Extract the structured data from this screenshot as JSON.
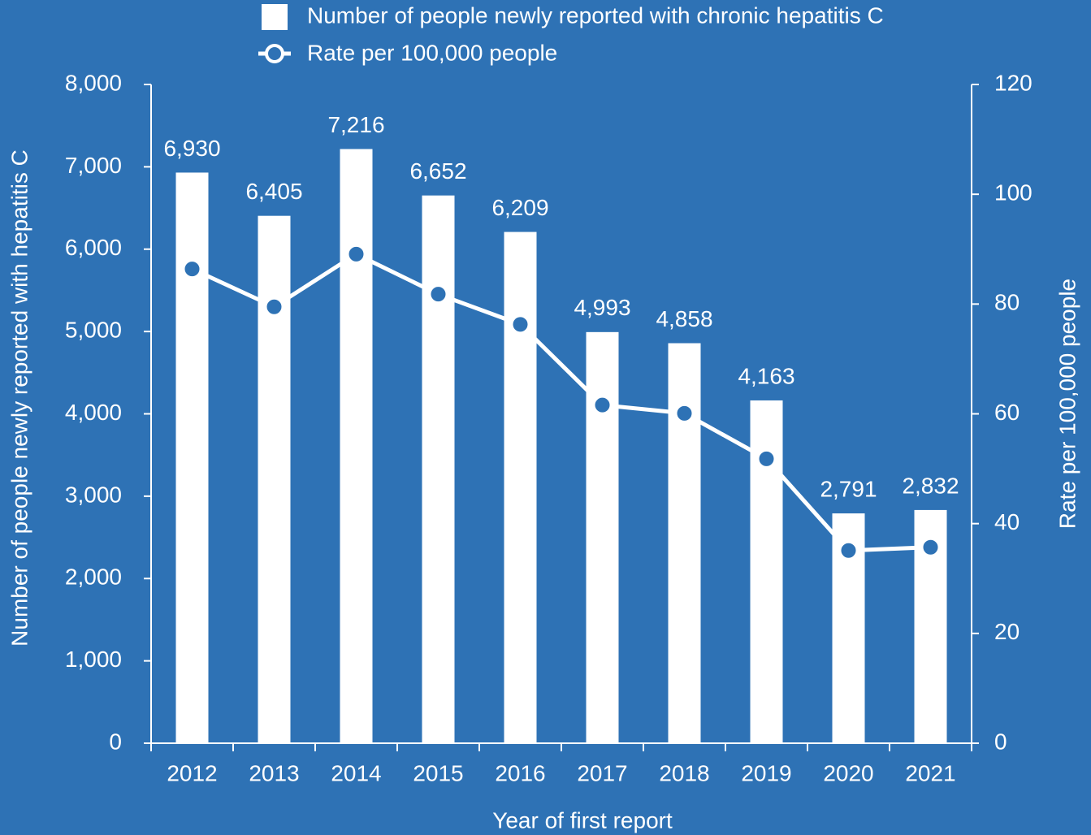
{
  "chart_data": {
    "type": "bar",
    "x_label": "Year of first report",
    "y_label": "Number of people newly reported with hepatitis C",
    "y2_label": "Rate per 100,000 people",
    "categories": [
      "2012",
      "2013",
      "2014",
      "2015",
      "2016",
      "2017",
      "2018",
      "2019",
      "2020",
      "2021"
    ],
    "series": [
      {
        "name": "Number of people newly reported with chronic hepatitis C",
        "type": "bar",
        "color": "#ffffff",
        "values": [
          6930,
          6405,
          7216,
          6652,
          6209,
          4993,
          4858,
          4163,
          2791,
          2832
        ],
        "value_labels": [
          "6,930",
          "6,405",
          "7,216",
          "6,652",
          "6,209",
          "4,993",
          "4,858",
          "4,163",
          "2,791",
          "2,832"
        ]
      },
      {
        "name": "Rate per 100,000 people",
        "type": "line",
        "axis": "y2",
        "color": "#ffffff",
        "values": [
          86.4,
          79.5,
          89.1,
          81.8,
          76.3,
          61.6,
          60.1,
          51.8,
          35.1,
          35.7
        ]
      }
    ],
    "ylim": [
      0,
      8000
    ],
    "yticks": [
      0,
      {
        "value": 1000,
        "label": "1,000"
      },
      {
        "value": 2000,
        "label": "2,000"
      },
      {
        "value": 3000,
        "label": "3,000"
      },
      {
        "value": 4000,
        "label": "4,000"
      },
      {
        "value": 5000,
        "label": "5,000"
      },
      {
        "value": 6000,
        "label": "6,000"
      },
      {
        "value": 7000,
        "label": "7,000"
      },
      {
        "value": 8000,
        "label": "8,000"
      }
    ],
    "y2lim": [
      0,
      120
    ],
    "y2ticks": [
      0,
      20,
      40,
      60,
      80,
      100,
      120
    ],
    "background": "#2e72b5"
  }
}
